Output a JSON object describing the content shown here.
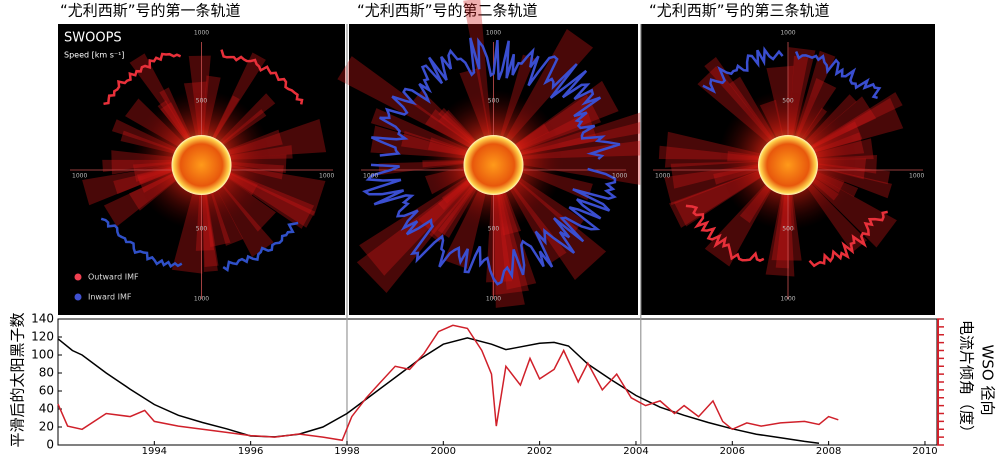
{
  "panels": [
    {
      "title": "“尤利西斯”号的第一条轨道",
      "label": "SWOOPS",
      "unit": "Speed [km s⁻¹]",
      "legend": [
        "Outward IMF",
        "Inward IMF"
      ]
    },
    {
      "title": "“尤利西斯”号的第二条轨道"
    },
    {
      "title": "“尤利西斯”号的第三条轨道"
    }
  ],
  "radial_ticks": [
    500,
    1000
  ],
  "chart_data": {
    "type": "line",
    "ylabel": "平滑后的太阳黑子数",
    "y2label": "电流片倾角（度）",
    "y2label_note": "WSO 径向",
    "xlim": [
      1992,
      2010.25
    ],
    "xticks": [
      1994,
      1996,
      1998,
      2000,
      2002,
      2004,
      2006,
      2008,
      2010
    ],
    "ylim": [
      0,
      140
    ],
    "yticks": [
      0,
      20,
      40,
      60,
      80,
      100,
      120,
      140
    ],
    "y2lim": [
      0,
      80
    ],
    "y2ticks": [
      0,
      5,
      10,
      15,
      20,
      25,
      30,
      35,
      40,
      45,
      50,
      55,
      60,
      65,
      70,
      75,
      80
    ],
    "orbit_boundaries": [
      1998.0,
      2004.1
    ],
    "series": [
      {
        "color": "#000000",
        "x": [
          1992.0,
          1992.3,
          1992.5,
          1993,
          1993.5,
          1994,
          1994.5,
          1995,
          1995.5,
          1996,
          1996.5,
          1997,
          1997.5,
          1998,
          1998.5,
          1999,
          1999.5,
          2000,
          2000.5,
          2001,
          2001.3,
          2001.5,
          2002,
          2002.3,
          2002.6,
          2003,
          2003.5,
          2004,
          2004.5,
          2005,
          2005.5,
          2006,
          2006.5,
          2007,
          2007.5,
          2007.8
        ],
        "values": [
          118,
          105,
          100,
          80,
          62,
          45,
          33,
          25,
          18,
          10,
          9,
          12,
          20,
          35,
          55,
          75,
          95,
          112,
          119,
          112,
          106,
          108,
          113,
          114,
          110,
          90,
          72,
          55,
          42,
          33,
          25,
          18,
          12,
          8,
          4,
          2
        ]
      },
      {
        "color": "#d0202a",
        "axis": "y2",
        "x": [
          1992.0,
          1992.2,
          1992.5,
          1993,
          1993.5,
          1993.8,
          1994,
          1994.5,
          1995,
          1995.5,
          1996,
          1996.5,
          1997,
          1997.5,
          1997.9,
          1998.1,
          1998.4,
          1998.7,
          1999,
          1999.3,
          1999.6,
          1999.9,
          2000.2,
          2000.5,
          2000.8,
          2001,
          2001.1,
          2001.3,
          2001.6,
          2001.8,
          2002,
          2002.3,
          2002.5,
          2002.8,
          2003,
          2003.3,
          2003.6,
          2003.9,
          2004.2,
          2004.5,
          2004.8,
          2005,
          2005.3,
          2005.6,
          2005.8,
          2006,
          2006.3,
          2006.6,
          2007,
          2007.5,
          2007.8,
          2008,
          2008.2
        ],
        "values": [
          26,
          12,
          10,
          20,
          18,
          22,
          15,
          12,
          10,
          8,
          6,
          5,
          7,
          5,
          3,
          18,
          30,
          40,
          50,
          48,
          58,
          72,
          76,
          74,
          60,
          45,
          12,
          50,
          38,
          55,
          42,
          48,
          60,
          40,
          52,
          35,
          45,
          30,
          25,
          28,
          20,
          25,
          18,
          28,
          15,
          10,
          14,
          12,
          14,
          15,
          13,
          18,
          16
        ]
      }
    ]
  }
}
